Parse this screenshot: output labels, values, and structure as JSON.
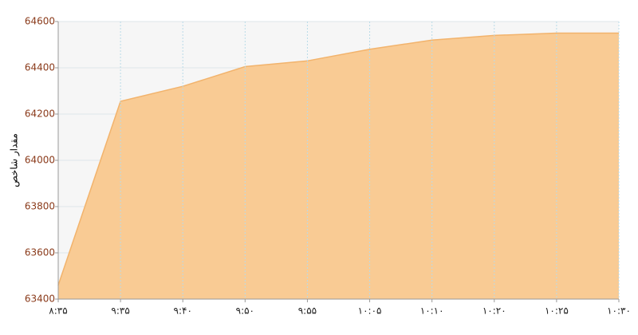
{
  "chart_data": {
    "type": "area",
    "y_label": "مقدار شاخص",
    "categories": [
      "۸:۳۵",
      "۹:۳۵",
      "۹:۴۰",
      "۹:۵۰",
      "۹:۵۵",
      "۱۰:۰۵",
      "۱۰:۱۰",
      "۱۰:۲۰",
      "۱۰:۲۵",
      "۱۰:۳۰"
    ],
    "values": [
      63460,
      64255,
      64320,
      64405,
      64430,
      64480,
      64520,
      64540,
      64550,
      64550
    ],
    "color": "#f9cb94",
    "line_color": "#f2b36c",
    "ylim": [
      63400,
      64600
    ],
    "yticks": [
      63400,
      63600,
      63800,
      64000,
      64200,
      64400,
      64600
    ],
    "grid": true
  }
}
